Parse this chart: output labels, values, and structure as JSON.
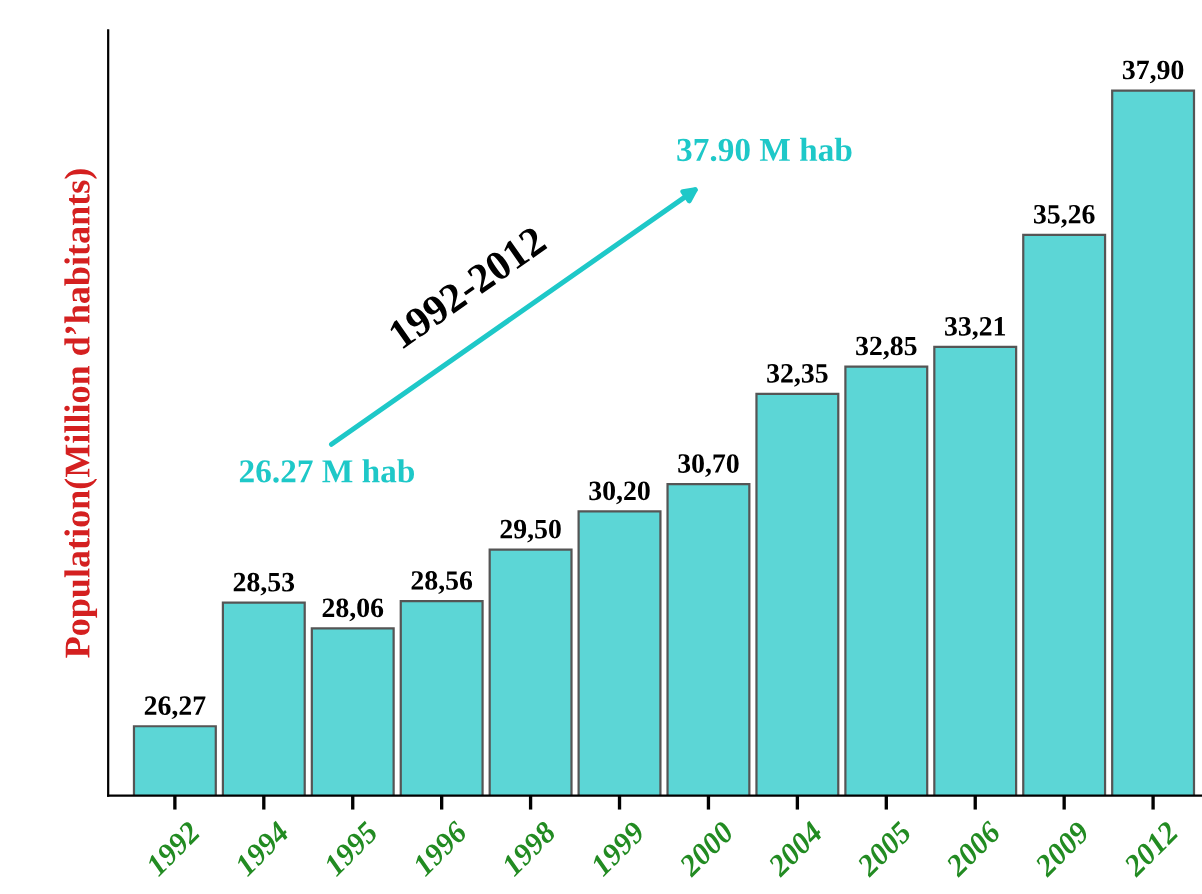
{
  "chart_data": {
    "type": "bar",
    "ylabel": "Population(Million d’habitants)",
    "categories": [
      "1992",
      "1994",
      "1995",
      "1996",
      "1998",
      "1999",
      "2000",
      "2004",
      "2005",
      "2006",
      "2009",
      "2012"
    ],
    "values": [
      26.27,
      28.53,
      28.06,
      28.56,
      29.5,
      30.2,
      30.7,
      32.35,
      32.85,
      33.21,
      35.26,
      37.9
    ],
    "value_labels": [
      "26,27",
      "28,53",
      "28,06",
      "28,56",
      "29,50",
      "30,20",
      "30,70",
      "32,35",
      "32,85",
      "33,21",
      "35,26",
      "37,90"
    ],
    "ylim": [
      25,
      39
    ],
    "tick_labels": "x",
    "color": "#5cd6d6",
    "annotations": [
      "1992-2012",
      "26.27 M hab",
      "37.90 M hab"
    ],
    "grid": false
  }
}
